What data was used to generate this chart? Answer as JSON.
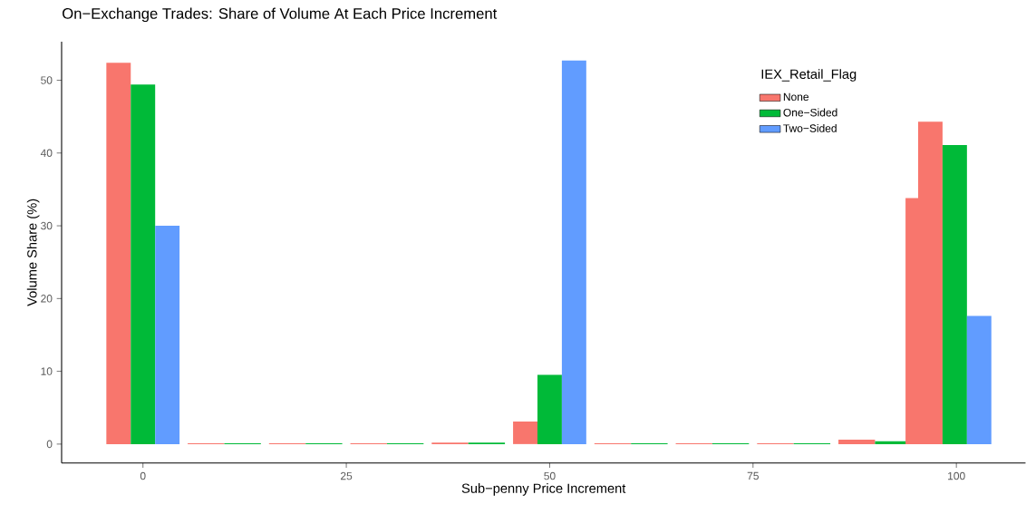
{
  "chart_data": {
    "type": "bar",
    "title": "On−Exchange Trades: Share of Volume At Each Price Increment",
    "xlabel": "Sub−penny Price Increment",
    "ylabel": "Volume Share (%)",
    "legend_title": "IEX_Retail_Flag",
    "legend": "top right",
    "grid": false,
    "xlim": [
      -10,
      108.5
    ],
    "ylim": [
      -2.6,
      55.3
    ],
    "xticks": [
      0,
      25,
      50,
      75,
      100
    ],
    "yticks": [
      0,
      10,
      20,
      30,
      40,
      50
    ],
    "series": [
      {
        "name": "None",
        "color": "#f8766d",
        "x": [
          -3,
          7.75,
          17.75,
          27.75,
          37.75,
          47,
          57.75,
          67.75,
          77.75,
          87.75,
          96,
          96.8
        ],
        "values": [
          52.4,
          0.1,
          0.1,
          0.1,
          0.2,
          3.1,
          0.1,
          0.1,
          0.1,
          0.6,
          33.8,
          44.3
        ]
      },
      {
        "name": "One−Sided",
        "color": "#00ba38",
        "x": [
          0,
          12.25,
          22.25,
          32.25,
          42.25,
          50,
          62.25,
          72.25,
          82.25,
          92.25,
          99.8
        ],
        "values": [
          49.4,
          0.1,
          0.1,
          0.1,
          0.2,
          9.5,
          0.1,
          0.1,
          0.1,
          0.4,
          41.1
        ]
      },
      {
        "name": "Two−Sided",
        "color": "#619cff",
        "x": [
          3,
          53,
          102.8
        ],
        "values": [
          30.0,
          52.7,
          17.6
        ]
      }
    ]
  }
}
